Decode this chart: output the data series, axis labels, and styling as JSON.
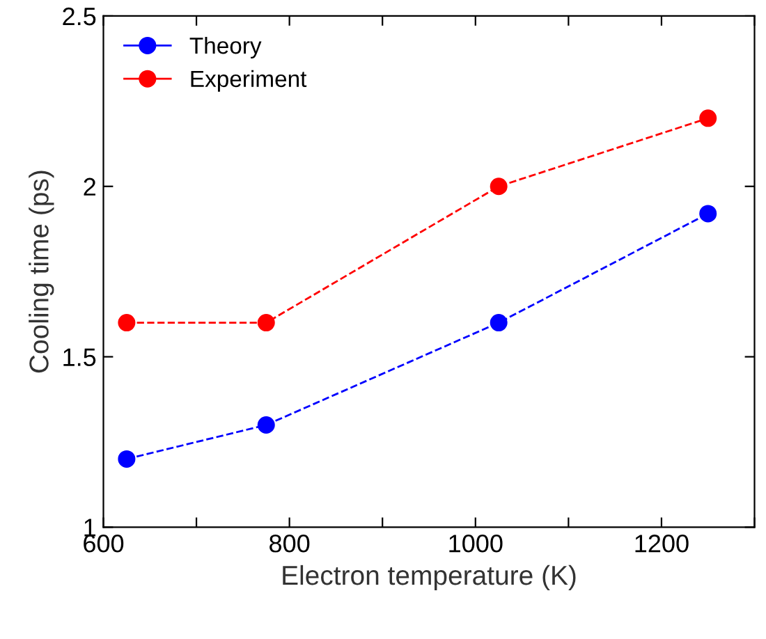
{
  "chart_data": {
    "type": "line",
    "xlabel": "Electron temperature (K)",
    "ylabel": "Cooling time (ps)",
    "x": [
      625,
      775,
      1025,
      1250
    ],
    "series": [
      {
        "name": "Theory",
        "color": "#0000ff",
        "values": [
          1.2,
          1.3,
          1.6,
          1.92
        ]
      },
      {
        "name": "Experiment",
        "color": "#ff0000",
        "values": [
          1.6,
          1.6,
          2.0,
          2.2
        ]
      }
    ],
    "xlim": [
      600,
      1300
    ],
    "ylim": [
      1,
      2.5
    ],
    "xticks": [
      600,
      {
        "value": 700,
        "label": null
      },
      800,
      {
        "value": 900,
        "label": null
      },
      1000,
      {
        "value": 1100,
        "label": null
      },
      1200,
      {
        "value": 1300,
        "label": null
      }
    ],
    "yticks": [
      1,
      1.5,
      2,
      2.5
    ],
    "grid": false,
    "legend": "top left",
    "marker": "circle",
    "line_style": "dashed"
  }
}
